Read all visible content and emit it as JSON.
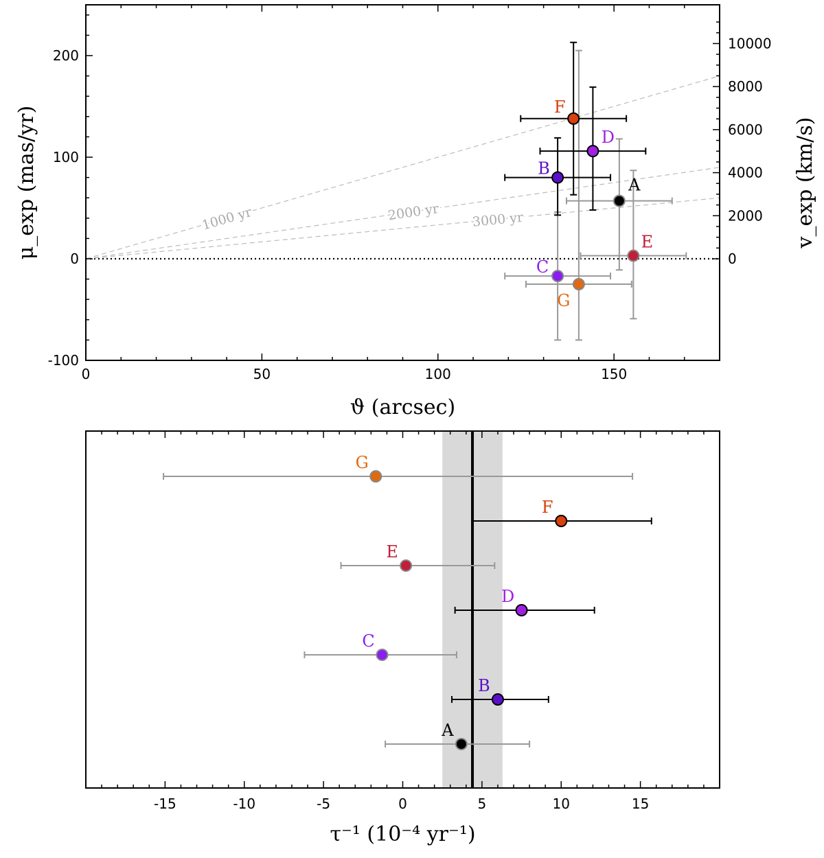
{
  "chart_data": [
    {
      "type": "scatter",
      "title": "",
      "xlabel": "ϑ (arcsec)",
      "ylabel": "μ_exp (mas/yr)",
      "ylabel_right": "v_exp (km/s)",
      "xlim": [
        0,
        180
      ],
      "ylim": [
        -100,
        250
      ],
      "xticks": [
        0,
        50,
        100,
        150
      ],
      "xtick_labels": [
        "0",
        "50",
        "100",
        "150"
      ],
      "yticks": [
        -100,
        0,
        100,
        200
      ],
      "ytick_labels": [
        "-100",
        "0",
        "100",
        "200"
      ],
      "right_ticks": [
        0,
        2000,
        4000,
        6000,
        8000,
        10000
      ],
      "right_tick_labels": [
        "0",
        "2000",
        "4000",
        "6000",
        "8000",
        "10000"
      ],
      "right_scale_kms_per_masyr": 47.2,
      "zero_line": true,
      "age_lines": [
        {
          "label": "1000 yr",
          "age_yr": 1000
        },
        {
          "label": "2000 yr",
          "age_yr": 2000
        },
        {
          "label": "3000 yr",
          "age_yr": 3000
        }
      ],
      "points": [
        {
          "label": "A",
          "x": 151.5,
          "y": 57,
          "xerr": 15,
          "yerr_low": 68,
          "yerr_high": 61,
          "color": "#000000",
          "err_color": "#999999"
        },
        {
          "label": "B",
          "x": 134,
          "y": 80,
          "xerr": 15,
          "yerr_low": 37,
          "yerr_high": 39,
          "color": "#5a0fc8",
          "err_color": "#000000"
        },
        {
          "label": "C",
          "x": 134,
          "y": -17,
          "xerr": 15,
          "yerr_low": 63,
          "yerr_high": 63,
          "color": "#8a1ef0",
          "err_color": "#999999"
        },
        {
          "label": "D",
          "x": 144,
          "y": 106,
          "xerr": 15,
          "yerr_low": 58,
          "yerr_high": 63,
          "color": "#a020e0",
          "err_color": "#000000"
        },
        {
          "label": "E",
          "x": 155.5,
          "y": 3,
          "xerr": 15,
          "yerr_low": 62,
          "yerr_high": 84,
          "color": "#c01f3a",
          "err_color": "#999999"
        },
        {
          "label": "F",
          "x": 138.5,
          "y": 138,
          "xerr": 15,
          "yerr_low": 75,
          "yerr_high": 75,
          "color": "#d8400e",
          "err_color": "#000000"
        },
        {
          "label": "G",
          "x": 140,
          "y": -25,
          "xerr": 15,
          "yerr_low": 55,
          "yerr_high": 230,
          "color": "#e06a12",
          "err_color": "#999999"
        }
      ]
    },
    {
      "type": "scatter",
      "title": "",
      "xlabel": "τ⁻¹ (10⁻⁴ yr⁻¹)",
      "ylabel": "",
      "xlim": [
        -20,
        20
      ],
      "xticks": [
        -15,
        -10,
        -5,
        0,
        5,
        10,
        15
      ],
      "xtick_labels": [
        "-15",
        "-10",
        "-5",
        "0",
        "5",
        "10",
        "15"
      ],
      "mean_value": 4.4,
      "band": [
        2.5,
        6.3
      ],
      "points": [
        {
          "label": "G",
          "x": -1.7,
          "xerr_low": 13.4,
          "xerr_high": 16.2,
          "color": "#e06a12",
          "err_color": "#999999"
        },
        {
          "label": "F",
          "x": 10.0,
          "xerr_low": 5.6,
          "xerr_high": 5.7,
          "color": "#d8400e",
          "err_color": "#000000"
        },
        {
          "label": "E",
          "x": 0.2,
          "xerr_low": 4.1,
          "xerr_high": 5.6,
          "color": "#c01f3a",
          "err_color": "#999999"
        },
        {
          "label": "D",
          "x": 7.5,
          "xerr_low": 4.2,
          "xerr_high": 4.6,
          "color": "#a020e0",
          "err_color": "#000000"
        },
        {
          "label": "C",
          "x": -1.3,
          "xerr_low": 4.9,
          "xerr_high": 4.7,
          "color": "#8a1ef0",
          "err_color": "#999999"
        },
        {
          "label": "B",
          "x": 6.0,
          "xerr_low": 2.9,
          "xerr_high": 3.2,
          "color": "#5a0fc8",
          "err_color": "#000000"
        },
        {
          "label": "A",
          "x": 3.7,
          "xerr_low": 4.8,
          "xerr_high": 4.3,
          "color": "#000000",
          "err_color": "#999999"
        }
      ]
    }
  ]
}
